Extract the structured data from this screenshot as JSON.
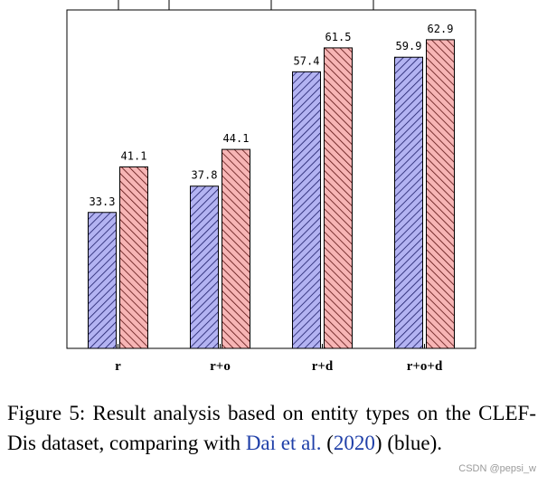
{
  "chart_data": {
    "type": "bar",
    "categories": [
      "r",
      "r+o",
      "r+d",
      "r+o+d"
    ],
    "series": [
      {
        "values": [
          33.3,
          37.8,
          57.4,
          59.9
        ],
        "color": "#b3b3f2",
        "hatch": "#1a1a66"
      },
      {
        "values": [
          41.1,
          44.1,
          61.5,
          62.9
        ],
        "color": "#f7b5b5",
        "hatch": "#5a1010"
      }
    ],
    "ylim": [
      10,
      68
    ],
    "grid": false,
    "title": "",
    "xlabel": "",
    "ylabel": ""
  },
  "caption": {
    "part1": "Figure 5:  Result analysis based on entity types on the CLEF-Dis dataset, comparing with ",
    "cite_author": "Dai et al.",
    "cite_year_open": " (",
    "cite_year": "2020",
    "cite_year_close": ")",
    "part2": " (blue)."
  },
  "watermark": "CSDN @pepsi_w"
}
